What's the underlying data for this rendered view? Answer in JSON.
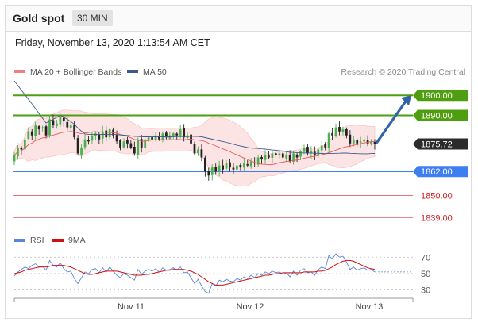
{
  "header": {
    "title": "Gold spot",
    "timeframe": "30 MIN"
  },
  "datetime": "Friday, November 13, 2020 1:13:54 AM CET",
  "legend": {
    "ma20_bb": "MA 20 + Bollinger Bands",
    "ma50": "MA 50"
  },
  "copyright": "Research © 2020 Trading Central",
  "rsi_legend": {
    "rsi": "RSI",
    "ma9": "9MA"
  },
  "colors": {
    "up": "#4caf50",
    "down": "#222222",
    "resistance": "#4f9e0f",
    "support": "#3d7ff0",
    "target": "#e3767a",
    "bb_fill": "#fde2e2",
    "ma20": "#e85a5a",
    "ma50": "#3b5b8f",
    "arrow": "#3163a6",
    "rsi": "#5a86d6",
    "rsi_ma": "#cc1111"
  },
  "chart_data": [
    {
      "type": "candlestick",
      "title": "Gold spot",
      "x_labels": [
        "Nov 11",
        "Nov 12",
        "Nov 13"
      ],
      "y_range": [
        1832,
        1908
      ],
      "current_price": {
        "label": "1875.72",
        "value": 1875.72
      },
      "levels": [
        {
          "label": "1900.00",
          "value": 1900.0,
          "kind": "resistance"
        },
        {
          "label": "1890.00",
          "value": 1890.0,
          "kind": "resistance"
        },
        {
          "label": "1862.00",
          "value": 1862.0,
          "kind": "support"
        },
        {
          "label": "1850.00",
          "value": 1850.0,
          "kind": "target"
        },
        {
          "label": "1839.00",
          "value": 1839.0,
          "kind": "target"
        }
      ],
      "close": [
        1870,
        1874,
        1873,
        1878,
        1882,
        1880,
        1885,
        1883,
        1884,
        1880,
        1888,
        1885,
        1886,
        1889,
        1887,
        1884,
        1885,
        1879,
        1871,
        1874,
        1878,
        1877,
        1880,
        1881,
        1878,
        1882,
        1879,
        1883,
        1880,
        1877,
        1874,
        1877,
        1876,
        1874,
        1871,
        1878,
        1874,
        1878,
        1879,
        1878,
        1880,
        1878,
        1881,
        1879,
        1880,
        1881,
        1880,
        1883,
        1879,
        1880,
        1876,
        1871,
        1873,
        1869,
        1862,
        1860,
        1864,
        1862,
        1865,
        1863,
        1866,
        1864,
        1863,
        1865,
        1864,
        1866,
        1865,
        1867,
        1866,
        1869,
        1868,
        1870,
        1869,
        1871,
        1870,
        1871,
        1869,
        1870,
        1867,
        1871,
        1869,
        1872,
        1874,
        1871,
        1872,
        1870,
        1873,
        1875,
        1874,
        1881,
        1880,
        1884,
        1882,
        1883,
        1880,
        1876,
        1878,
        1876,
        1877,
        1878,
        1876,
        1877,
        1875.7
      ],
      "ma20_end": 1874.5,
      "ma50_end": 1872.0,
      "forecast_arrow": {
        "from": 1875.72,
        "to": 1900.0
      }
    },
    {
      "type": "line",
      "title": "RSI",
      "y_ticks": [
        70,
        50,
        30
      ],
      "series": [
        {
          "name": "RSI",
          "values": [
            47,
            52,
            55,
            58,
            56,
            60,
            62,
            58,
            59,
            54,
            66,
            60,
            58,
            63,
            56,
            52,
            53,
            44,
            38,
            45,
            52,
            50,
            55,
            56,
            51,
            57,
            52,
            58,
            53,
            48,
            45,
            50,
            48,
            45,
            42,
            55,
            49,
            53,
            55,
            53,
            56,
            52,
            57,
            54,
            55,
            57,
            54,
            58,
            51,
            52,
            45,
            38,
            43,
            35,
            28,
            26,
            38,
            35,
            42,
            40,
            43,
            41,
            40,
            44,
            42,
            46,
            44,
            48,
            45,
            50,
            48,
            52,
            50,
            53,
            51,
            52,
            49,
            51,
            46,
            53,
            48,
            54,
            56,
            51,
            52,
            48,
            55,
            58,
            56,
            72,
            68,
            74,
            70,
            71,
            64,
            55,
            58,
            54,
            56,
            57,
            54,
            55,
            52
          ]
        },
        {
          "name": "9MA",
          "values": [
            50,
            51,
            52,
            54,
            55,
            56,
            57,
            58,
            58,
            58,
            59,
            60,
            60,
            60,
            60,
            59,
            58,
            56,
            54,
            52,
            50,
            49,
            49,
            50,
            51,
            52,
            53,
            53,
            53,
            53,
            52,
            51,
            50,
            49,
            48,
            48,
            48,
            49,
            49,
            50,
            51,
            52,
            53,
            54,
            54,
            55,
            55,
            55,
            55,
            54,
            53,
            51,
            49,
            46,
            43,
            40,
            38,
            36,
            36,
            36,
            37,
            38,
            39,
            40,
            41,
            42,
            43,
            44,
            45,
            46,
            47,
            48,
            48,
            49,
            50,
            50,
            51,
            51,
            51,
            51,
            51,
            51,
            52,
            52,
            52,
            52,
            53,
            53,
            54,
            56,
            58,
            61,
            63,
            65,
            66,
            66,
            65,
            63,
            61,
            59,
            57,
            56,
            55
          ]
        }
      ]
    }
  ]
}
